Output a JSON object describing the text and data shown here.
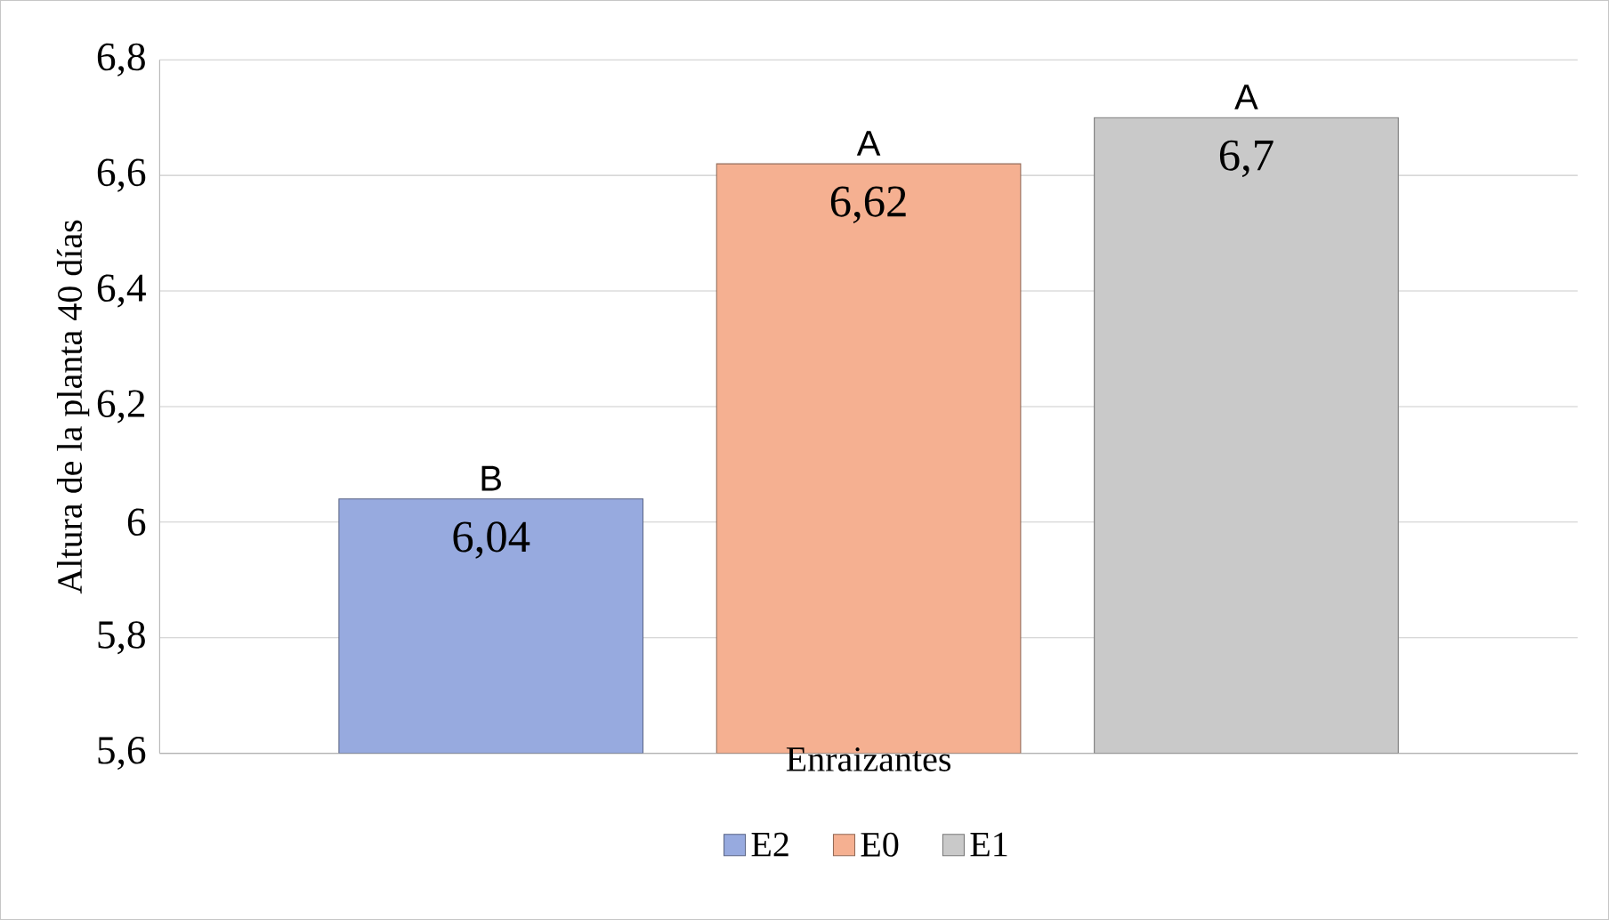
{
  "chart_data": {
    "type": "bar",
    "xlabel": "Enraizantes",
    "ylabel": "Altura de la planta 40 días",
    "categories": [
      null
    ],
    "series": [
      {
        "name": "E2",
        "color": "#97aadf",
        "values": [
          6.04
        ],
        "value_labels": [
          "6,04"
        ]
      },
      {
        "name": "E0",
        "color": "#f5b091",
        "values": [
          6.62
        ],
        "value_labels": [
          "6,62"
        ]
      },
      {
        "name": "E1",
        "color": "#c9c9c9",
        "values": [
          6.7
        ],
        "value_labels": [
          "6,7"
        ]
      }
    ],
    "ylim": [
      5.6,
      6.8
    ],
    "yticks": [
      {
        "value": 5.6,
        "label": "5,6"
      },
      {
        "value": 5.8,
        "label": "5,8"
      },
      6,
      {
        "value": 6.2,
        "label": "6,2"
      },
      {
        "value": 6.4,
        "label": "6,4"
      },
      {
        "value": 6.6,
        "label": "6,6"
      },
      {
        "value": 6.8,
        "label": "6,8"
      }
    ],
    "annotations": [
      {
        "text": "B",
        "y": 6.04
      },
      {
        "text": "A",
        "y": 6.62
      },
      {
        "text": "A",
        "y": 6.7
      }
    ],
    "grid": "y",
    "legend": "bottom"
  }
}
